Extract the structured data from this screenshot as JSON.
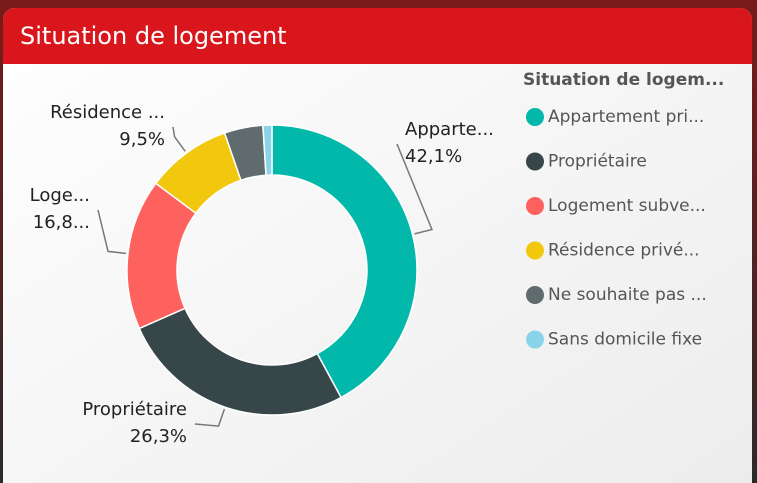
{
  "chart_data": {
    "type": "donut",
    "title": "Situation de logement",
    "legend_title": "Situation de logem...",
    "categories": [
      "Appartement pri...",
      "Propriétaire",
      "Logement subve...",
      "Résidence privé...",
      "Ne souhaite pas ...",
      "Sans domicile fixe"
    ],
    "values": [
      42.1,
      26.3,
      16.8,
      9.5,
      4.3,
      1.0
    ],
    "value_labels": [
      "42,1%",
      "26,3%",
      "16,8...",
      "9,5%",
      null,
      null
    ],
    "slice_labels": [
      "Apparte...",
      "Propriétaire",
      "Loge...",
      "Résidence ...",
      null,
      null
    ],
    "colors": [
      "#01B8AA",
      "#374649",
      "#FD625E",
      "#F2C80F",
      "#5F6B6D",
      "#8AD4EB"
    ],
    "legend": "right"
  }
}
